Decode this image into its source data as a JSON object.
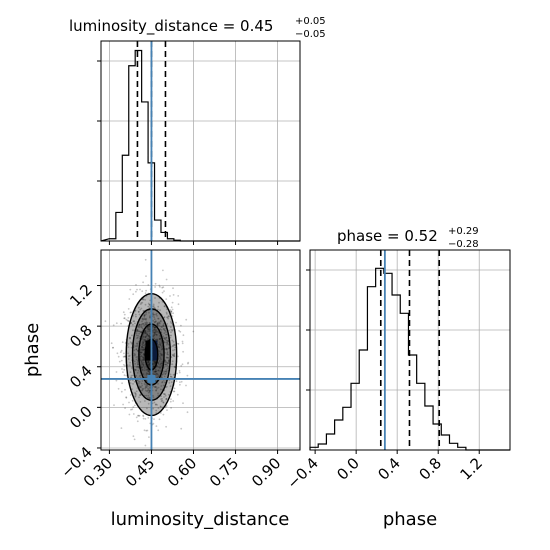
{
  "chart_data": {
    "type": "corner",
    "truth_color": "#4682b4",
    "parameters": [
      "luminosity_distance",
      "phase"
    ],
    "panels": [
      {
        "id": "luminosity_distance_hist",
        "type": "histogram",
        "title_main": "luminosity_distance = 0.45",
        "title_sup": "+0.05",
        "title_sub": "−0.05",
        "xlim": [
          0.27,
          0.98
        ],
        "bin_width": 0.023,
        "bin_start": 0.3,
        "counts": [
          12,
          150,
          450,
          920,
          1000,
          730,
          410,
          110,
          45,
          12,
          4
        ],
        "ymax": 1050,
        "quantiles": [
          0.4,
          0.45,
          0.5
        ],
        "truth": 0.45
      },
      {
        "id": "phase_hist",
        "type": "histogram",
        "title_main": "phase = 0.52",
        "title_sup": "+0.29",
        "title_sub": "−0.28",
        "xlim": [
          -0.45,
          1.5
        ],
        "bin_width": 0.08,
        "bin_start": -0.45,
        "counts": [
          8,
          18,
          48,
          90,
          128,
          200,
          300,
          490,
          545,
          530,
          465,
          410,
          285,
          200,
          132,
          78,
          45,
          20,
          8
        ],
        "ymax": 600,
        "quantiles": [
          0.24,
          0.52,
          0.81
        ],
        "truth": 0.28,
        "x_ticks": [
          "−0.4",
          "0.0",
          "0.4",
          "0.8",
          "1.2"
        ],
        "x_tick_values": [
          -0.4,
          0.0,
          0.4,
          0.8,
          1.2
        ],
        "xlabel": "phase"
      },
      {
        "id": "joint_2d",
        "type": "2d-density",
        "xlim": [
          0.27,
          0.98
        ],
        "ylim": [
          -0.42,
          1.55
        ],
        "center": [
          0.45,
          0.52
        ],
        "spread": [
          0.045,
          0.3
        ],
        "truth": [
          0.45,
          0.28
        ],
        "x_ticks": [
          "0.30",
          "0.45",
          "0.60",
          "0.75",
          "0.90"
        ],
        "x_tick_values": [
          0.3,
          0.45,
          0.6,
          0.75,
          0.9
        ],
        "y_ticks": [
          "−0.4",
          "0.0",
          "0.4",
          "0.8",
          "1.2"
        ],
        "y_tick_values": [
          -0.4,
          0.0,
          0.4,
          0.8,
          1.2
        ],
        "xlabel": "luminosity_distance",
        "ylabel": "phase"
      }
    ]
  }
}
